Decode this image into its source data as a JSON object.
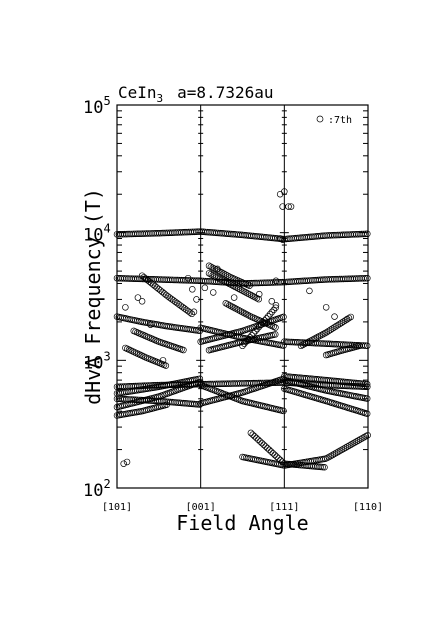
{
  "chart_data": {
    "type": "scatter",
    "title_compound": "CeIn",
    "title_subscript": "3",
    "title_lattice": "a=8.7326au",
    "xlabel": "Field Angle",
    "ylabel": "dHvA Frequency (T)",
    "yscale": "log",
    "ylim": [
      100,
      100000
    ],
    "y_ticks": [
      {
        "value": 100,
        "base": "10",
        "exp": "2"
      },
      {
        "value": 1000,
        "base": "10",
        "exp": "3"
      },
      {
        "value": 10000,
        "base": "10",
        "exp": "4"
      },
      {
        "value": 100000,
        "base": "10",
        "exp": "5"
      }
    ],
    "xlim": [
      0,
      3
    ],
    "x_ticks": [
      {
        "value": 0,
        "label": "[101]"
      },
      {
        "value": 1,
        "label": "[001]"
      },
      {
        "value": 2,
        "label": "[111]"
      },
      {
        "value": 3,
        "label": "[110]"
      }
    ],
    "legend": {
      "label": ":7th",
      "position": "top-right"
    },
    "branches": [
      {
        "start": 0.0,
        "end": 3.0,
        "points": [
          [
            0,
            9700
          ],
          [
            0.5,
            9900
          ],
          [
            1.0,
            10200
          ],
          [
            1.5,
            9600
          ],
          [
            2.0,
            8900
          ],
          [
            2.5,
            9500
          ],
          [
            3.0,
            9800
          ]
        ]
      },
      {
        "start": 0.0,
        "end": 3.0,
        "points": [
          [
            0,
            4400
          ],
          [
            0.5,
            4300
          ],
          [
            1.0,
            4200
          ],
          [
            1.5,
            4000
          ],
          [
            2.0,
            4100
          ],
          [
            2.5,
            4300
          ],
          [
            3.0,
            4400
          ]
        ]
      },
      {
        "start": 0.0,
        "end": 3.0,
        "points": [
          [
            0,
            620
          ],
          [
            0.5,
            640
          ],
          [
            1.0,
            650
          ],
          [
            1.5,
            660
          ],
          [
            2.0,
            670
          ],
          [
            2.5,
            640
          ],
          [
            3.0,
            620
          ]
        ]
      },
      {
        "start": 0.0,
        "end": 1.0,
        "points": [
          [
            0,
            550
          ],
          [
            0.5,
            620
          ],
          [
            1.0,
            720
          ]
        ]
      },
      {
        "start": 0.0,
        "end": 1.0,
        "points": [
          [
            0,
            500
          ],
          [
            0.5,
            480
          ],
          [
            1.0,
            450
          ]
        ]
      },
      {
        "start": 0.0,
        "end": 1.0,
        "points": [
          [
            0,
            430
          ],
          [
            0.5,
            520
          ],
          [
            1.0,
            680
          ]
        ]
      },
      {
        "start": 0.0,
        "end": 0.6,
        "points": [
          [
            0,
            370
          ],
          [
            0.3,
            400
          ],
          [
            0.6,
            450
          ]
        ]
      },
      {
        "start": 1.0,
        "end": 2.0,
        "points": [
          [
            1.0,
            460
          ],
          [
            1.5,
            560
          ],
          [
            2.0,
            720
          ]
        ]
      },
      {
        "start": 1.0,
        "end": 2.0,
        "points": [
          [
            1.0,
            640
          ],
          [
            1.5,
            480
          ],
          [
            2.0,
            400
          ]
        ]
      },
      {
        "start": 2.0,
        "end": 3.0,
        "points": [
          [
            2.0,
            700
          ],
          [
            2.5,
            580
          ],
          [
            3.0,
            500
          ]
        ]
      },
      {
        "start": 2.0,
        "end": 3.0,
        "points": [
          [
            2.0,
            600
          ],
          [
            2.5,
            480
          ],
          [
            3.0,
            380
          ]
        ]
      },
      {
        "start": 2.0,
        "end": 3.0,
        "points": [
          [
            2.0,
            750
          ],
          [
            2.5,
            700
          ],
          [
            3.0,
            650
          ]
        ]
      },
      {
        "start": 1.5,
        "end": 3.0,
        "points": [
          [
            1.5,
            175
          ],
          [
            2.0,
            150
          ],
          [
            2.5,
            170
          ],
          [
            3.0,
            260
          ]
        ]
      },
      {
        "start": 1.6,
        "end": 2.5,
        "points": [
          [
            1.6,
            270
          ],
          [
            2.0,
            155
          ],
          [
            2.5,
            145
          ]
        ]
      },
      {
        "start": 0.0,
        "end": 1.0,
        "points": [
          [
            0,
            2200
          ],
          [
            0.3,
            2000
          ],
          [
            0.6,
            1850
          ],
          [
            1.0,
            1700
          ]
        ]
      },
      {
        "start": 0.3,
        "end": 0.9,
        "points": [
          [
            0.3,
            4600
          ],
          [
            0.6,
            3200
          ],
          [
            0.9,
            2300
          ]
        ]
      },
      {
        "start": 0.2,
        "end": 0.8,
        "points": [
          [
            0.2,
            1700
          ],
          [
            0.5,
            1400
          ],
          [
            0.8,
            1200
          ]
        ]
      },
      {
        "start": 0.1,
        "end": 0.6,
        "points": [
          [
            0.1,
            1250
          ],
          [
            0.35,
            1050
          ],
          [
            0.6,
            900
          ]
        ]
      },
      {
        "start": 1.0,
        "end": 2.0,
        "points": [
          [
            1.0,
            1400
          ],
          [
            1.5,
            1700
          ],
          [
            2.0,
            2200
          ]
        ]
      },
      {
        "start": 1.0,
        "end": 2.0,
        "points": [
          [
            1.0,
            1800
          ],
          [
            1.5,
            1500
          ],
          [
            2.0,
            1300
          ]
        ]
      },
      {
        "start": 1.1,
        "end": 1.9,
        "points": [
          [
            1.1,
            1200
          ],
          [
            1.5,
            1400
          ],
          [
            1.9,
            1600
          ]
        ]
      },
      {
        "start": 1.3,
        "end": 1.9,
        "points": [
          [
            1.3,
            2800
          ],
          [
            1.6,
            2200
          ],
          [
            1.9,
            1800
          ]
        ]
      },
      {
        "start": 1.5,
        "end": 1.9,
        "points": [
          [
            1.5,
            1300
          ],
          [
            1.75,
            2000
          ],
          [
            1.9,
            2600
          ]
        ]
      },
      {
        "start": 1.1,
        "end": 1.7,
        "points": [
          [
            1.1,
            4800
          ],
          [
            1.4,
            3800
          ],
          [
            1.7,
            3000
          ]
        ]
      },
      {
        "start": 2.0,
        "end": 3.0,
        "points": [
          [
            2.0,
            1400
          ],
          [
            2.5,
            1350
          ],
          [
            3.0,
            1300
          ]
        ]
      },
      {
        "start": 2.2,
        "end": 2.8,
        "points": [
          [
            2.2,
            1300
          ],
          [
            2.5,
            1650
          ],
          [
            2.8,
            2200
          ]
        ]
      },
      {
        "start": 2.5,
        "end": 2.9,
        "points": [
          [
            2.5,
            1100
          ],
          [
            2.7,
            1200
          ],
          [
            2.9,
            1300
          ]
        ]
      },
      {
        "start": 1.1,
        "end": 1.6,
        "points": [
          [
            1.1,
            5500
          ],
          [
            1.35,
            4500
          ],
          [
            1.6,
            3800
          ]
        ]
      }
    ],
    "scatter": [
      [
        0.08,
        155
      ],
      [
        0.12,
        160
      ],
      [
        0.1,
        2600
      ],
      [
        0.25,
        3100
      ],
      [
        0.3,
        2900
      ],
      [
        0.85,
        4400
      ],
      [
        0.9,
        3600
      ],
      [
        0.95,
        3000
      ],
      [
        1.05,
        3700
      ],
      [
        1.15,
        3400
      ],
      [
        1.2,
        5200
      ],
      [
        1.4,
        3100
      ],
      [
        1.7,
        3300
      ],
      [
        1.95,
        9000
      ],
      [
        1.98,
        8800
      ],
      [
        1.9,
        4200
      ],
      [
        1.95,
        20000
      ],
      [
        1.98,
        16000
      ],
      [
        2.0,
        21000
      ],
      [
        2.05,
        16000
      ],
      [
        2.08,
        16000
      ],
      [
        2.3,
        3500
      ],
      [
        2.5,
        2600
      ],
      [
        0.92,
        2400
      ],
      [
        0.4,
        1900
      ],
      [
        1.85,
        2900
      ],
      [
        1.9,
        2700
      ],
      [
        2.6,
        2200
      ],
      [
        2.75,
        2100
      ],
      [
        0.55,
        1000
      ]
    ]
  }
}
